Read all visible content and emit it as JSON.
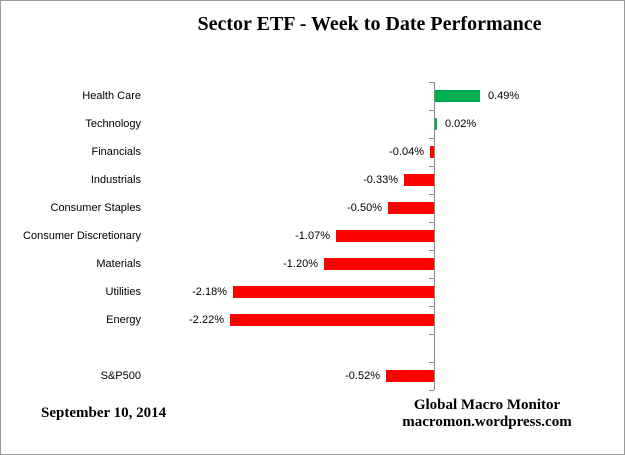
{
  "chart_data": {
    "type": "bar",
    "orientation": "horizontal",
    "title": "Sector ETF - Week to Date Performance",
    "unit": "%",
    "baseline": 0,
    "categories": [
      "Health Care",
      "Technology",
      "Financials",
      "Industrials",
      "Consumer Staples",
      "Consumer Discretionary",
      "Materials",
      "Utilities",
      "Energy",
      "S&P500"
    ],
    "values": [
      0.49,
      0.02,
      -0.04,
      -0.33,
      -0.5,
      -1.07,
      -1.2,
      -2.18,
      -2.22,
      -0.52
    ],
    "value_labels": [
      "0.49%",
      "0.02%",
      "-0.04%",
      "-0.33%",
      "-0.50%",
      "-1.07%",
      "-1.20%",
      "-2.18%",
      "-2.22%",
      "-0.52%"
    ],
    "positive_color": "#00B050",
    "negative_color": "#FF0000",
    "axis_color": "#8a8a8a",
    "separator_before_category": "S&P500",
    "layout_hints": {
      "value_axis_tick_labels_shown": false,
      "gridlines": false,
      "data_labels": "outside-end",
      "legend": "none"
    }
  },
  "footer": {
    "date": "September 10, 2014",
    "source_line1": "Global Macro Monitor",
    "source_line2": "macromon.wordpress.com"
  }
}
